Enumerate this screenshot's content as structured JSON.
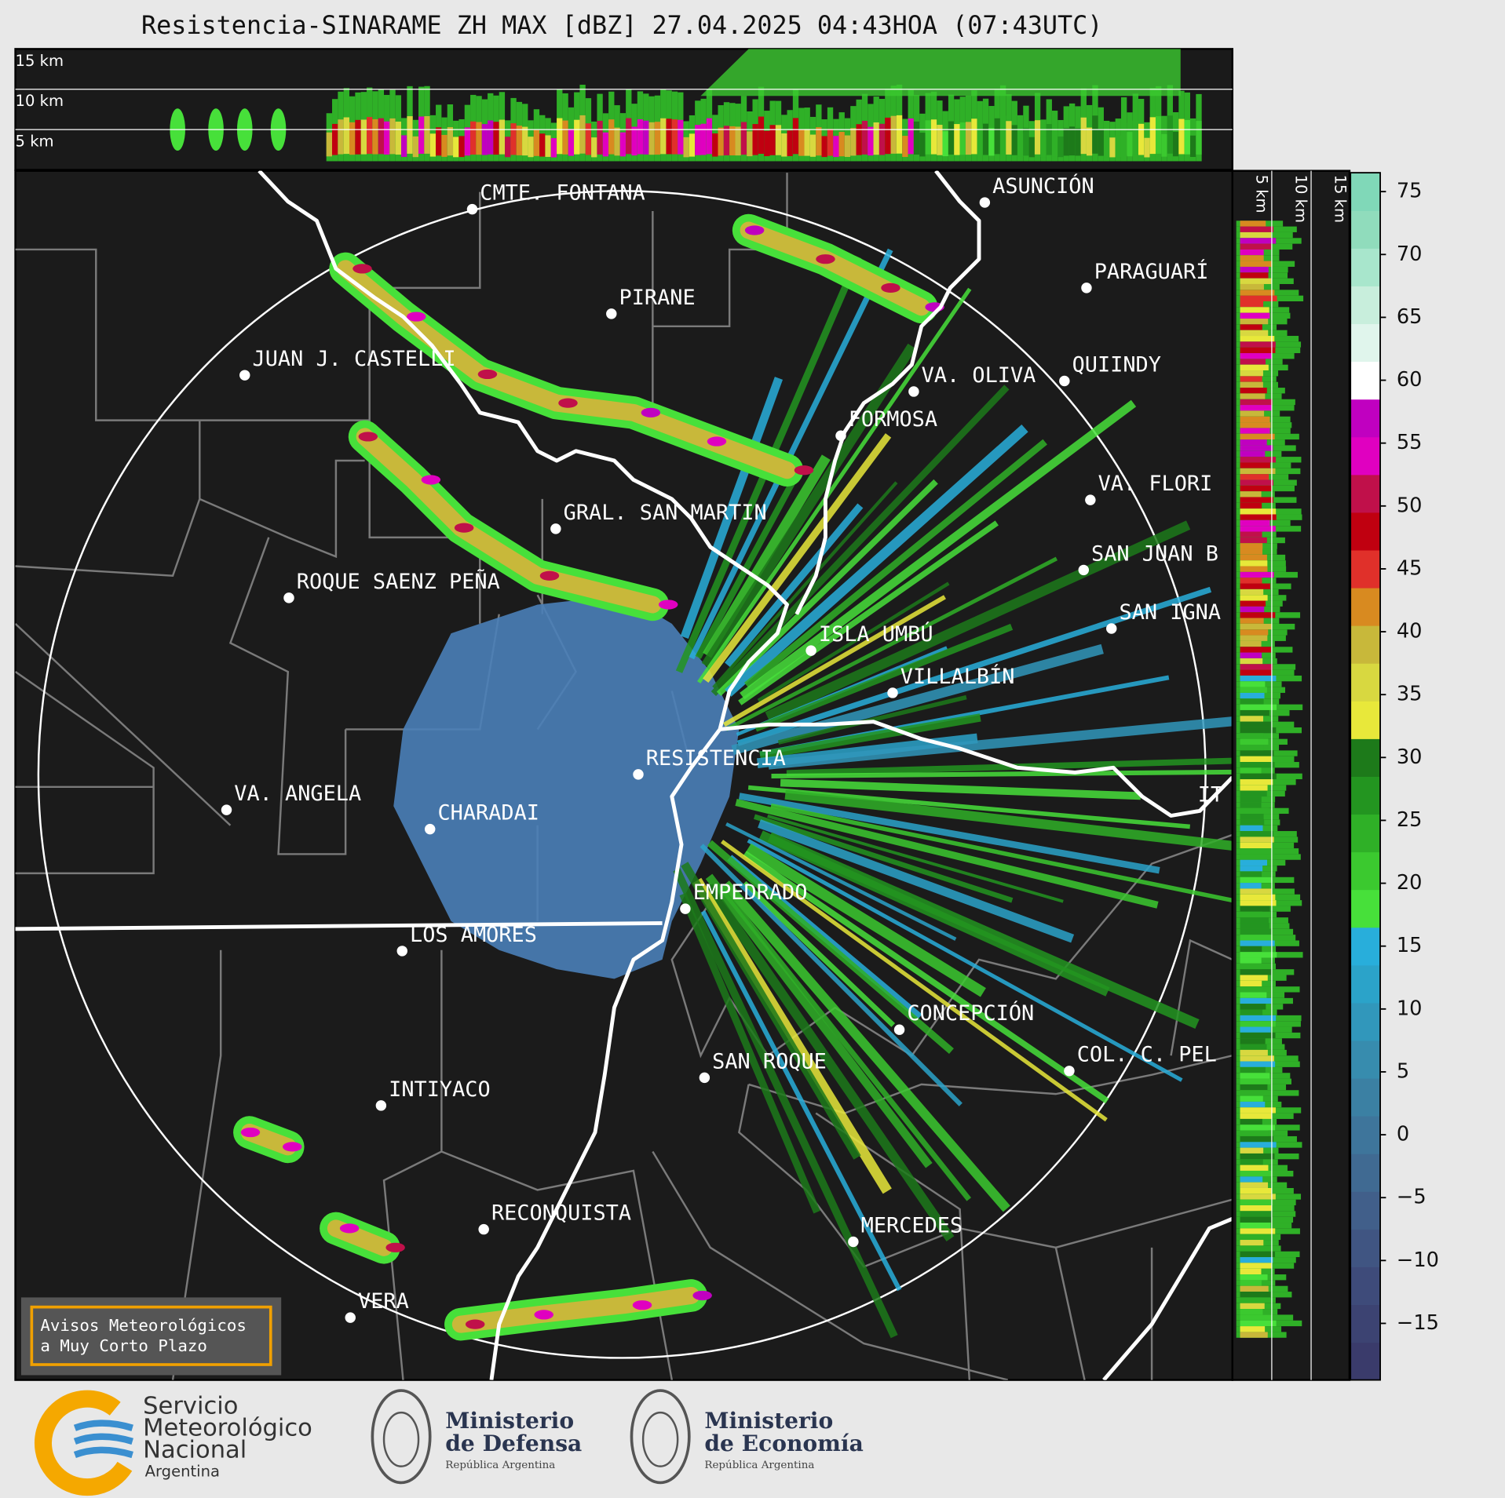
{
  "title": "Resistencia-SINARAME ZH MAX [dBZ] 27.04.2025 04:43HOA (07:43UTC)",
  "top_panel": {
    "height_labels": [
      "15 km",
      "10 km",
      "5 km"
    ]
  },
  "side_panel": {
    "height_labels": [
      "5 km",
      "10 km",
      "15 km"
    ]
  },
  "cities": [
    "CMTE. FONTANA",
    "PIRANE",
    "JUAN J. CASTELLI",
    "ASUNCIÓN",
    "PARAGUARÍ",
    "VA. OLIVA",
    "QUIINDY",
    "FORMOSA",
    "VA. FLORI",
    "GRAL. SAN MARTIN",
    "SAN JUAN B",
    "ROQUE SAENZ PEÑA",
    "SAN IGNA",
    "ISLA UMBÚ",
    "VILLALBÍN",
    "RESISTENCIA",
    "VA. ANGELA",
    "CHARADAI",
    "IT",
    "EMPEDRADO",
    "LOS AMORES",
    "CONCEPCIÓN",
    "COL. C. PEL",
    "SAN ROQUE",
    "INTIYACO",
    "RECONQUISTA",
    "MERCEDES",
    "VERA"
  ],
  "notice": [
    "Avisos Meteorológicos",
    "a Muy Corto Plazo"
  ],
  "logos": {
    "smn": [
      "Servicio",
      "Meteorológico",
      "Nacional",
      "Argentina"
    ],
    "defensa": {
      "title": [
        "Ministerio",
        "de Defensa"
      ],
      "subtitle": "República Argentina"
    },
    "economia": {
      "title": [
        "Ministerio",
        "de Economía"
      ],
      "subtitle": "República Argentina"
    }
  },
  "colorbar": {
    "lim": [
      -19.5,
      76.5
    ],
    "ticks": [
      {
        "value": -15,
        "label": "−15"
      },
      {
        "value": -10,
        "label": "−10"
      },
      {
        "value": -5,
        "label": "−5"
      },
      0,
      5,
      10,
      15,
      20,
      25,
      30,
      35,
      40,
      45,
      50,
      55,
      60,
      65,
      70,
      75
    ],
    "colors": [
      "#3a3b6b",
      "#3c4372",
      "#3e4b7a",
      "#405582",
      "#415f8a",
      "#406a92",
      "#3e759b",
      "#3b80a3",
      "#378cae",
      "#3197bb",
      "#2ba3c9",
      "#28aedb",
      "#47e03a",
      "#3bc92f",
      "#2fb027",
      "#239520",
      "#1d7a1a",
      "#e8e83a",
      "#d8d840",
      "#c8b83a",
      "#d88a20",
      "#e0302a",
      "#c00010",
      "#c0104a",
      "#e000c0",
      "#c000c0",
      "#ffffff",
      "#e0f5ec",
      "#c8eedc",
      "#a8e6cc",
      "#90dcbc",
      "#80d8b8"
    ]
  }
}
